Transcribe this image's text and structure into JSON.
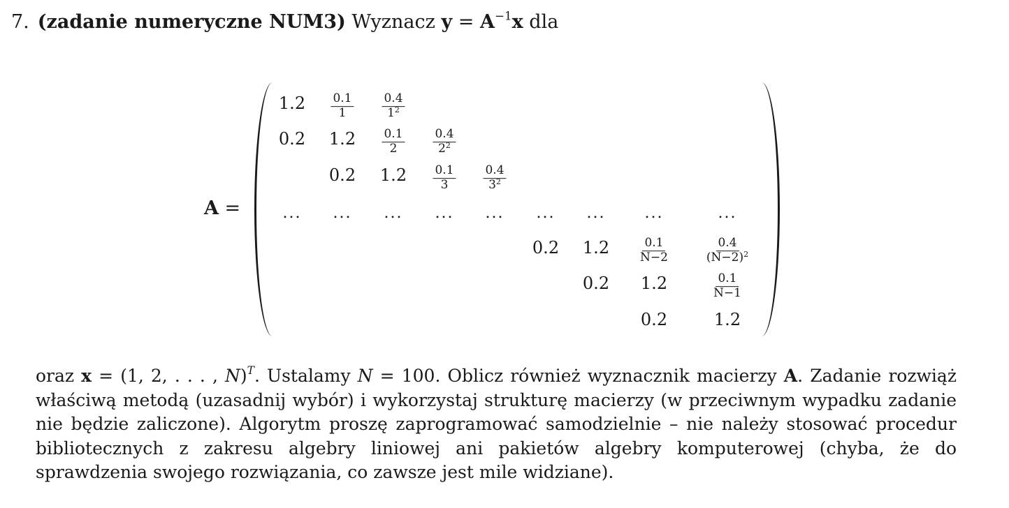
{
  "heading": {
    "number": "7.",
    "title": "(zadanie numeryczne NUM3)",
    "lead": "Wyznacz",
    "y": "y",
    "eq": " = ",
    "A": "A",
    "inv": "−1",
    "x": "x",
    "tail": " dla"
  },
  "matrix": {
    "label": "A",
    "eq": " =",
    "cells": [
      {
        "row": 0,
        "col": 0,
        "kind": "num",
        "text": "1.2"
      },
      {
        "row": 0,
        "col": 1,
        "kind": "frac",
        "num": "0.1",
        "den": "1"
      },
      {
        "row": 0,
        "col": 2,
        "kind": "frac",
        "num": "0.4",
        "den": "1",
        "den_sup": "2"
      },
      {
        "row": 1,
        "col": 0,
        "kind": "num",
        "text": "0.2"
      },
      {
        "row": 1,
        "col": 1,
        "kind": "num",
        "text": "1.2"
      },
      {
        "row": 1,
        "col": 2,
        "kind": "frac",
        "num": "0.1",
        "den": "2"
      },
      {
        "row": 1,
        "col": 3,
        "kind": "frac",
        "num": "0.4",
        "den": "2",
        "den_sup": "2"
      },
      {
        "row": 2,
        "col": 1,
        "kind": "num",
        "text": "0.2"
      },
      {
        "row": 2,
        "col": 2,
        "kind": "num",
        "text": "1.2"
      },
      {
        "row": 2,
        "col": 3,
        "kind": "frac",
        "num": "0.1",
        "den": "3"
      },
      {
        "row": 2,
        "col": 4,
        "kind": "frac",
        "num": "0.4",
        "den": "3",
        "den_sup": "2"
      },
      {
        "row": 3,
        "col": 0,
        "kind": "dots",
        "text": "..."
      },
      {
        "row": 3,
        "col": 1,
        "kind": "dots",
        "text": "..."
      },
      {
        "row": 3,
        "col": 2,
        "kind": "dots",
        "text": "..."
      },
      {
        "row": 3,
        "col": 3,
        "kind": "dots",
        "text": "..."
      },
      {
        "row": 3,
        "col": 4,
        "kind": "dots",
        "text": "..."
      },
      {
        "row": 3,
        "col": 5,
        "kind": "dots",
        "text": "..."
      },
      {
        "row": 3,
        "col": 6,
        "kind": "dots",
        "text": "..."
      },
      {
        "row": 3,
        "col": 7,
        "kind": "dots",
        "text": "..."
      },
      {
        "row": 3,
        "col": 8,
        "kind": "dots",
        "text": "..."
      },
      {
        "row": 4,
        "col": 5,
        "kind": "num",
        "text": "0.2"
      },
      {
        "row": 4,
        "col": 6,
        "kind": "num",
        "text": "1.2"
      },
      {
        "row": 4,
        "col": 7,
        "kind": "frac",
        "num": "0.1",
        "den": "N−2"
      },
      {
        "row": 4,
        "col": 8,
        "kind": "frac",
        "num": "0.4",
        "den": "(N−2)",
        "den_sup": "2"
      },
      {
        "row": 5,
        "col": 6,
        "kind": "num",
        "text": "0.2"
      },
      {
        "row": 5,
        "col": 7,
        "kind": "num",
        "text": "1.2"
      },
      {
        "row": 5,
        "col": 8,
        "kind": "frac",
        "num": "0.1",
        "den": "N−1"
      },
      {
        "row": 6,
        "col": 7,
        "kind": "num",
        "text": "0.2"
      },
      {
        "row": 6,
        "col": 8,
        "kind": "num",
        "text": "1.2"
      }
    ]
  },
  "paragraph": {
    "p1": "oraz ",
    "x": "x",
    "p2": " = (1, 2, . . . , ",
    "N1": "N",
    "p3": ")",
    "T": "T",
    "p4": ". Ustalamy ",
    "N2": "N",
    "p5": " = 100. Oblicz również wyznacznik macierzy ",
    "A": "A",
    "p6": ". Zadanie rozwiąż właściwą metodą (uzasadnij wybór) i wykorzystaj strukturę macierzy (w przeciwnym wypadku zadanie nie będzie zaliczone). Algorytm proszę zaprogramować samodzielnie – nie należy stosować procedur bibliotecznych z zakresu algebry liniowej ani pakietów algebry komputerowej (chyba, że do sprawdzenia swojego rozwiązania, co zawsze jest mile widziane)."
  }
}
